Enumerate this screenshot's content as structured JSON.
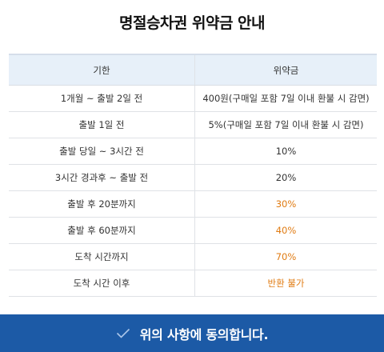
{
  "title": "명절승차권 위약금 안내",
  "table": {
    "headers": [
      "기한",
      "위약금"
    ],
    "rows": [
      {
        "period": "1개월 ~ 출발 2일 전",
        "fee": "400원(구매일 포함 7일 이내 환불 시 감면)",
        "highlight": false
      },
      {
        "period": "출발 1일 전",
        "fee": "5%(구매일 포함 7일 이내 환불 시 감면)",
        "highlight": false
      },
      {
        "period": "출발 당일 ~ 3시간 전",
        "fee": "10%",
        "highlight": false
      },
      {
        "period": "3시간 경과후 ~ 출발 전",
        "fee": "20%",
        "highlight": false
      },
      {
        "period": "출발 후 20분까지",
        "fee": "30%",
        "highlight": true
      },
      {
        "period": "출발 후 60분까지",
        "fee": "40%",
        "highlight": true
      },
      {
        "period": "도착 시간까지",
        "fee": "70%",
        "highlight": true
      },
      {
        "period": "도착 시간 이후",
        "fee": "반환 불가",
        "highlight": true
      }
    ]
  },
  "agree_button": {
    "label": "위의 사항에 동의합니다.",
    "icon": "check-icon"
  },
  "colors": {
    "header_bg": "#e7f0f9",
    "highlight": "#e07b12",
    "button_bg": "#1c5aa6"
  }
}
